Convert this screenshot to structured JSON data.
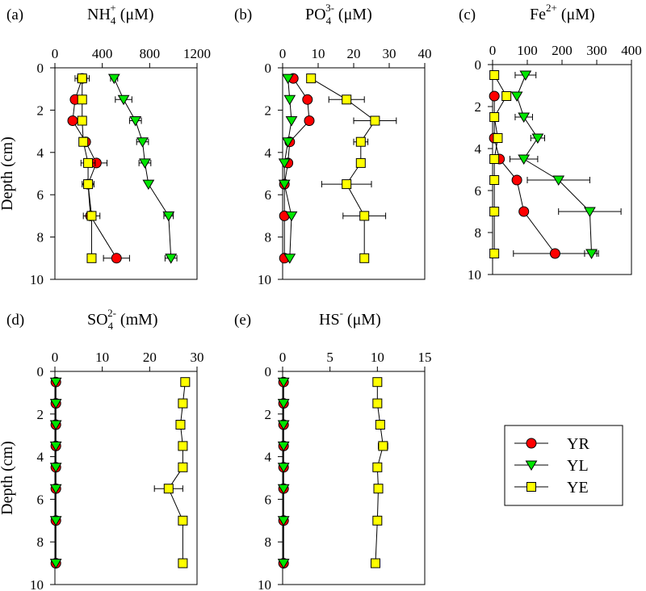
{
  "figure": {
    "y_axis_label": "Depth (cm)",
    "depth_ticks": [
      "0",
      "2",
      "4",
      "6",
      "8",
      "10"
    ]
  },
  "legend": {
    "entries": [
      {
        "name": "YR",
        "marker": "circle",
        "color": "#ff0000"
      },
      {
        "name": "YL",
        "marker": "triangle-down",
        "color": "#00e600"
      },
      {
        "name": "YE",
        "marker": "square",
        "color": "#ffff00"
      }
    ]
  },
  "chart_data": [
    {
      "type": "scatter",
      "panel": "(a)",
      "title": {
        "base": "NH",
        "sub": "4",
        "sup": "+",
        "unit": " (μM)"
      },
      "xlim": [
        0,
        1200
      ],
      "xticks": [
        0,
        400,
        800,
        1200
      ],
      "xtick_labels": [
        "0",
        "400",
        "800",
        "1200"
      ],
      "ylim": [
        0,
        10
      ],
      "series": [
        {
          "name": "YR",
          "points": [
            {
              "d": 0.5,
              "v": 230,
              "e": 40
            },
            {
              "d": 1.5,
              "v": 170,
              "e": 0
            },
            {
              "d": 2.5,
              "v": 150,
              "e": 0
            },
            {
              "d": 3.5,
              "v": 260,
              "e": 0
            },
            {
              "d": 4.5,
              "v": 350,
              "e": 90
            },
            {
              "d": 5.5,
              "v": 280,
              "e": 0
            },
            {
              "d": 7.0,
              "v": 300,
              "e": 0
            },
            {
              "d": 9.0,
              "v": 520,
              "e": 110
            }
          ]
        },
        {
          "name": "YL",
          "points": [
            {
              "d": 0.5,
              "v": 500,
              "e": 30
            },
            {
              "d": 1.5,
              "v": 580,
              "e": 70
            },
            {
              "d": 2.5,
              "v": 680,
              "e": 50
            },
            {
              "d": 3.5,
              "v": 740,
              "e": 50
            },
            {
              "d": 4.5,
              "v": 760,
              "e": 50
            },
            {
              "d": 5.5,
              "v": 790,
              "e": 0
            },
            {
              "d": 7.0,
              "v": 960,
              "e": 40
            },
            {
              "d": 9.0,
              "v": 980,
              "e": 50
            }
          ]
        },
        {
          "name": "YE",
          "points": [
            {
              "d": 0.5,
              "v": 230,
              "e": 60
            },
            {
              "d": 1.5,
              "v": 230,
              "e": 0
            },
            {
              "d": 2.5,
              "v": 230,
              "e": 0
            },
            {
              "d": 3.5,
              "v": 240,
              "e": 0
            },
            {
              "d": 4.5,
              "v": 280,
              "e": 60
            },
            {
              "d": 5.5,
              "v": 280,
              "e": 50
            },
            {
              "d": 7.0,
              "v": 310,
              "e": 70
            },
            {
              "d": 9.0,
              "v": 310,
              "e": 0
            }
          ]
        }
      ]
    },
    {
      "type": "scatter",
      "panel": "(b)",
      "title": {
        "base": "PO",
        "sub": "4",
        "sup": "3-",
        "unit": " (μM)"
      },
      "xlim": [
        0,
        40
      ],
      "xticks": [
        0,
        10,
        20,
        30,
        40
      ],
      "xtick_labels": [
        "0",
        "10",
        "20",
        "30",
        "40"
      ],
      "ylim": [
        0,
        10
      ],
      "series": [
        {
          "name": "YR",
          "points": [
            {
              "d": 0.5,
              "v": 3.0,
              "e": 0
            },
            {
              "d": 1.5,
              "v": 7.0,
              "e": 0
            },
            {
              "d": 2.5,
              "v": 7.5,
              "e": 0
            },
            {
              "d": 3.5,
              "v": 2.0,
              "e": 0
            },
            {
              "d": 4.5,
              "v": 1.5,
              "e": 0
            },
            {
              "d": 5.5,
              "v": 0.5,
              "e": 0
            },
            {
              "d": 7.0,
              "v": 0.5,
              "e": 0
            },
            {
              "d": 9.0,
              "v": 0.5,
              "e": 0
            }
          ]
        },
        {
          "name": "YL",
          "points": [
            {
              "d": 0.5,
              "v": 1.5,
              "e": 0
            },
            {
              "d": 1.5,
              "v": 2.0,
              "e": 0
            },
            {
              "d": 2.5,
              "v": 2.5,
              "e": 0
            },
            {
              "d": 3.5,
              "v": 1.5,
              "e": 0
            },
            {
              "d": 4.5,
              "v": 0.5,
              "e": 0
            },
            {
              "d": 5.5,
              "v": 0.5,
              "e": 0
            },
            {
              "d": 7.0,
              "v": 2.5,
              "e": 0
            },
            {
              "d": 9.0,
              "v": 2.0,
              "e": 0
            }
          ]
        },
        {
          "name": "YE",
          "points": [
            {
              "d": 0.5,
              "v": 8.0,
              "e": 0
            },
            {
              "d": 1.5,
              "v": 18.0,
              "e": 5
            },
            {
              "d": 2.5,
              "v": 26.0,
              "e": 6
            },
            {
              "d": 3.5,
              "v": 22.0,
              "e": 2
            },
            {
              "d": 4.5,
              "v": 22.0,
              "e": 0
            },
            {
              "d": 5.5,
              "v": 18.0,
              "e": 7
            },
            {
              "d": 7.0,
              "v": 23.0,
              "e": 6
            },
            {
              "d": 9.0,
              "v": 23.0,
              "e": 0
            }
          ]
        }
      ]
    },
    {
      "type": "scatter",
      "panel": "(c)",
      "title": {
        "base": "Fe",
        "sub": "",
        "sup": "2+",
        "unit": " (μM)"
      },
      "xlim": [
        0,
        400
      ],
      "xticks": [
        0,
        100,
        200,
        300,
        400
      ],
      "xtick_labels": [
        "0",
        "100",
        "200",
        "300",
        "400"
      ],
      "ylim": [
        0,
        10
      ],
      "series": [
        {
          "name": "YR",
          "points": [
            {
              "d": 1.5,
              "v": 5,
              "e": 0
            },
            {
              "d": 3.5,
              "v": 5,
              "e": 0
            },
            {
              "d": 4.5,
              "v": 20,
              "e": 0
            },
            {
              "d": 5.5,
              "v": 70,
              "e": 0
            },
            {
              "d": 7.0,
              "v": 90,
              "e": 0
            },
            {
              "d": 9.0,
              "v": 180,
              "e": 120
            }
          ]
        },
        {
          "name": "YL",
          "points": [
            {
              "d": 0.5,
              "v": 95,
              "e": 30
            },
            {
              "d": 1.5,
              "v": 70,
              "e": 0
            },
            {
              "d": 2.5,
              "v": 90,
              "e": 25
            },
            {
              "d": 3.5,
              "v": 130,
              "e": 20
            },
            {
              "d": 4.5,
              "v": 90,
              "e": 40
            },
            {
              "d": 5.5,
              "v": 190,
              "e": 90
            },
            {
              "d": 7.0,
              "v": 280,
              "e": 90
            },
            {
              "d": 9.0,
              "v": 285,
              "e": 20
            }
          ]
        },
        {
          "name": "YE",
          "points": [
            {
              "d": 0.5,
              "v": 5,
              "e": 0
            },
            {
              "d": 1.5,
              "v": 40,
              "e": 0
            },
            {
              "d": 2.5,
              "v": 5,
              "e": 0
            },
            {
              "d": 3.5,
              "v": 15,
              "e": 0
            },
            {
              "d": 4.5,
              "v": 5,
              "e": 0
            },
            {
              "d": 5.5,
              "v": 5,
              "e": 0
            },
            {
              "d": 7.0,
              "v": 5,
              "e": 0
            },
            {
              "d": 9.0,
              "v": 5,
              "e": 0
            }
          ]
        }
      ]
    },
    {
      "type": "scatter",
      "panel": "(d)",
      "title": {
        "base": "SO",
        "sub": "4",
        "sup": "2-",
        "unit": " (mM)"
      },
      "xlim": [
        0,
        30
      ],
      "xticks": [
        0,
        10,
        20,
        30
      ],
      "xtick_labels": [
        "0",
        "10",
        "20",
        "30"
      ],
      "ylim": [
        0,
        10
      ],
      "series": [
        {
          "name": "YR",
          "points": [
            {
              "d": 0.5,
              "v": 0.2,
              "e": 0
            },
            {
              "d": 1.5,
              "v": 0.2,
              "e": 0
            },
            {
              "d": 2.5,
              "v": 0.2,
              "e": 0
            },
            {
              "d": 3.5,
              "v": 0.2,
              "e": 0
            },
            {
              "d": 4.5,
              "v": 0.2,
              "e": 0
            },
            {
              "d": 5.5,
              "v": 0.2,
              "e": 0
            },
            {
              "d": 7.0,
              "v": 0.2,
              "e": 0
            },
            {
              "d": 9.0,
              "v": 0.2,
              "e": 0
            }
          ]
        },
        {
          "name": "YL",
          "points": [
            {
              "d": 0.5,
              "v": 0.2,
              "e": 0
            },
            {
              "d": 1.5,
              "v": 0.2,
              "e": 0
            },
            {
              "d": 2.5,
              "v": 0.2,
              "e": 0
            },
            {
              "d": 3.5,
              "v": 0.2,
              "e": 0
            },
            {
              "d": 4.5,
              "v": 0.2,
              "e": 0
            },
            {
              "d": 5.5,
              "v": 0.2,
              "e": 0
            },
            {
              "d": 7.0,
              "v": 0.2,
              "e": 0
            },
            {
              "d": 9.0,
              "v": 0.2,
              "e": 0
            }
          ]
        },
        {
          "name": "YE",
          "points": [
            {
              "d": 0.5,
              "v": 27.5,
              "e": 0
            },
            {
              "d": 1.5,
              "v": 27.0,
              "e": 0
            },
            {
              "d": 2.5,
              "v": 26.5,
              "e": 0
            },
            {
              "d": 3.5,
              "v": 27.0,
              "e": 0
            },
            {
              "d": 4.5,
              "v": 27.0,
              "e": 0
            },
            {
              "d": 5.5,
              "v": 24.0,
              "e": 3
            },
            {
              "d": 7.0,
              "v": 27.0,
              "e": 0
            },
            {
              "d": 9.0,
              "v": 27.0,
              "e": 0
            }
          ]
        }
      ]
    },
    {
      "type": "scatter",
      "panel": "(e)",
      "title": {
        "base": "HS",
        "sub": "",
        "sup": "-",
        "unit": " (μM)"
      },
      "xlim": [
        0,
        15
      ],
      "xticks": [
        0,
        5,
        10,
        15
      ],
      "xtick_labels": [
        "0",
        "5",
        "10",
        "15"
      ],
      "ylim": [
        0,
        10
      ],
      "series": [
        {
          "name": "YR",
          "points": [
            {
              "d": 0.5,
              "v": 0.1,
              "e": 0
            },
            {
              "d": 1.5,
              "v": 0.1,
              "e": 0
            },
            {
              "d": 2.5,
              "v": 0.1,
              "e": 0
            },
            {
              "d": 3.5,
              "v": 0.1,
              "e": 0
            },
            {
              "d": 4.5,
              "v": 0.1,
              "e": 0
            },
            {
              "d": 5.5,
              "v": 0.1,
              "e": 0
            },
            {
              "d": 7.0,
              "v": 0.1,
              "e": 0
            },
            {
              "d": 9.0,
              "v": 0.1,
              "e": 0
            }
          ]
        },
        {
          "name": "YL",
          "points": [
            {
              "d": 0.5,
              "v": 0.1,
              "e": 0
            },
            {
              "d": 1.5,
              "v": 0.1,
              "e": 0
            },
            {
              "d": 2.5,
              "v": 0.1,
              "e": 0
            },
            {
              "d": 3.5,
              "v": 0.1,
              "e": 0
            },
            {
              "d": 4.5,
              "v": 0.1,
              "e": 0
            },
            {
              "d": 5.5,
              "v": 0.1,
              "e": 0
            },
            {
              "d": 7.0,
              "v": 0.1,
              "e": 0
            },
            {
              "d": 9.0,
              "v": 0.1,
              "e": 0
            }
          ]
        },
        {
          "name": "YE",
          "points": [
            {
              "d": 0.5,
              "v": 10.0,
              "e": 0
            },
            {
              "d": 1.5,
              "v": 10.0,
              "e": 0
            },
            {
              "d": 2.5,
              "v": 10.3,
              "e": 0
            },
            {
              "d": 3.5,
              "v": 10.6,
              "e": 0.5
            },
            {
              "d": 4.5,
              "v": 10.0,
              "e": 0
            },
            {
              "d": 5.5,
              "v": 10.1,
              "e": 0
            },
            {
              "d": 7.0,
              "v": 10.0,
              "e": 0
            },
            {
              "d": 9.0,
              "v": 9.8,
              "e": 0
            }
          ]
        }
      ]
    }
  ]
}
